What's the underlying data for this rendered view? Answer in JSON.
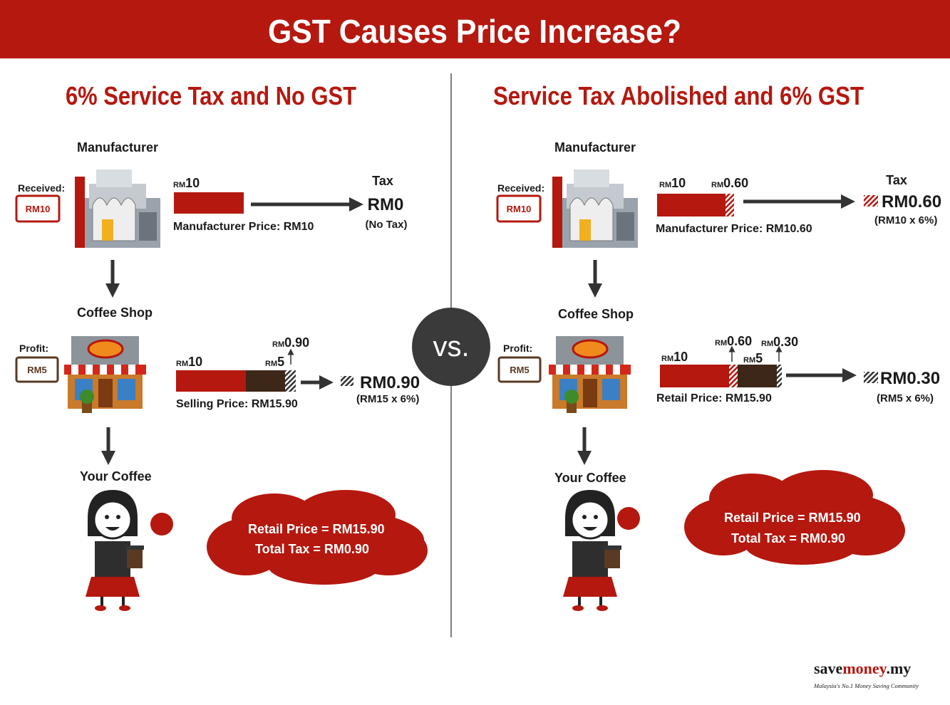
{
  "header": {
    "title": "GST Causes Price Increase?"
  },
  "vs": "vs.",
  "panels": [
    {
      "heading": "6% Service Tax and No GST",
      "manufacturer": {
        "label": "Manufacturer",
        "received_label": "Received:",
        "received_value": "RM10",
        "bar_labels": [
          {
            "unit": "RM",
            "amount": "10"
          }
        ],
        "price_label": "Manufacturer Price: RM10",
        "tax": {
          "label": "Tax",
          "value": "RM0",
          "note": "(No Tax)"
        }
      },
      "coffee_shop": {
        "label": "Coffee Shop",
        "profit_label": "Profit:",
        "profit_value": "RM5",
        "bar_labels": [
          {
            "unit": "RM",
            "amount": "10"
          },
          {
            "unit": "RM",
            "amount": "5"
          },
          {
            "unit": "RM",
            "amount": "0.90"
          }
        ],
        "price_label": "Selling Price: RM15.90",
        "tax": {
          "value": "RM0.90",
          "note": "(RM15 x 6%)"
        }
      },
      "your_coffee": {
        "label": "Your Coffee",
        "bubble": [
          "Retail Price = RM15.90",
          "Total Tax = RM0.90"
        ]
      }
    },
    {
      "heading": "Service Tax Abolished and 6% GST",
      "manufacturer": {
        "label": "Manufacturer",
        "received_label": "Received:",
        "received_value": "RM10",
        "bar_labels": [
          {
            "unit": "RM",
            "amount": "10"
          },
          {
            "unit": "RM",
            "amount": "0.60"
          }
        ],
        "price_label": "Manufacturer Price: RM10.60",
        "tax": {
          "label": "Tax",
          "value": "RM0.60",
          "note": "(RM10 x 6%)"
        }
      },
      "coffee_shop": {
        "label": "Coffee Shop",
        "profit_label": "Profit:",
        "profit_value": "RM5",
        "bar_labels": [
          {
            "unit": "RM",
            "amount": "10"
          },
          {
            "unit": "RM",
            "amount": "0.60"
          },
          {
            "unit": "RM",
            "amount": "5"
          },
          {
            "unit": "RM",
            "amount": "0.30"
          }
        ],
        "price_label": "Retail Price: RM15.90",
        "tax": {
          "value": "RM0.30",
          "note": "(RM5 x 6%)"
        }
      },
      "your_coffee": {
        "label": "Your Coffee",
        "bubble": [
          "Retail Price = RM15.90",
          "Total Tax = RM0.90"
        ]
      }
    }
  ],
  "logo": {
    "save": "save",
    "money": "money",
    "domain": ".my",
    "tagline": "Malaysia's No.1 Money Saving Community"
  }
}
